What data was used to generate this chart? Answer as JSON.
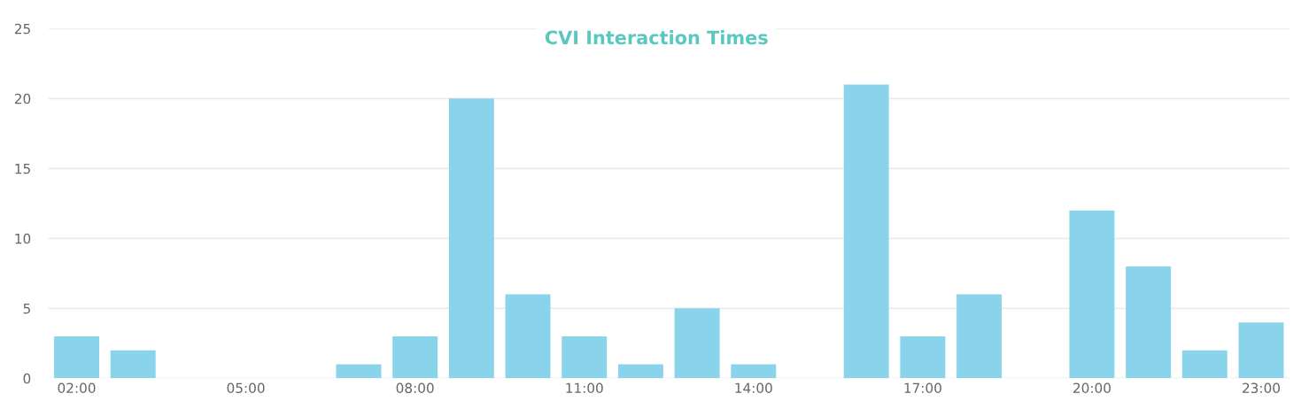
{
  "chart_data": {
    "type": "bar",
    "title": "CVI Interaction Times",
    "categories": [
      "02:00",
      null,
      null,
      "05:00",
      null,
      null,
      "08:00",
      null,
      null,
      "11:00",
      null,
      null,
      "14:00",
      null,
      null,
      "17:00",
      null,
      null,
      "20:00",
      null,
      null,
      "23:00"
    ],
    "values": [
      3,
      2,
      0,
      0,
      0,
      1,
      3,
      20,
      6,
      3,
      1,
      5,
      1,
      0,
      21,
      3,
      6,
      0,
      12,
      8,
      2,
      4
    ],
    "color": "#8ad4eb",
    "ylim": [
      0,
      25
    ],
    "yticks": [
      0,
      5,
      10,
      15,
      20,
      25
    ],
    "grid": "y"
  }
}
